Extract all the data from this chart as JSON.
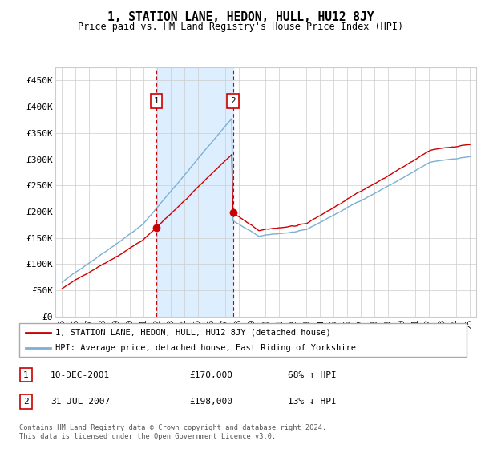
{
  "title": "1, STATION LANE, HEDON, HULL, HU12 8JY",
  "subtitle": "Price paid vs. HM Land Registry's House Price Index (HPI)",
  "red_label": "1, STATION LANE, HEDON, HULL, HU12 8JY (detached house)",
  "blue_label": "HPI: Average price, detached house, East Riding of Yorkshire",
  "transaction1": {
    "label": "1",
    "date": "10-DEC-2001",
    "price": "£170,000",
    "hpi": "68% ↑ HPI",
    "x_year": 2001.95,
    "y": 170000
  },
  "transaction2": {
    "label": "2",
    "date": "31-JUL-2007",
    "price": "£198,000",
    "hpi": "13% ↓ HPI",
    "x_year": 2007.58,
    "y": 198000
  },
  "ylim": [
    0,
    475000
  ],
  "xlim": [
    1994.5,
    2025.5
  ],
  "yticks": [
    0,
    50000,
    100000,
    150000,
    200000,
    250000,
    300000,
    350000,
    400000,
    450000
  ],
  "ytick_labels": [
    "£0",
    "£50K",
    "£100K",
    "£150K",
    "£200K",
    "£250K",
    "£300K",
    "£350K",
    "£400K",
    "£450K"
  ],
  "xticks": [
    1995,
    1996,
    1997,
    1998,
    1999,
    2000,
    2001,
    2002,
    2003,
    2004,
    2005,
    2006,
    2007,
    2008,
    2009,
    2010,
    2011,
    2012,
    2013,
    2014,
    2015,
    2016,
    2017,
    2018,
    2019,
    2020,
    2021,
    2022,
    2023,
    2024,
    2025
  ],
  "red_color": "#cc0000",
  "blue_color": "#7ab0d4",
  "shading_color": "#ddeeff",
  "grid_color": "#cccccc",
  "footer": "Contains HM Land Registry data © Crown copyright and database right 2024.\nThis data is licensed under the Open Government Licence v3.0."
}
